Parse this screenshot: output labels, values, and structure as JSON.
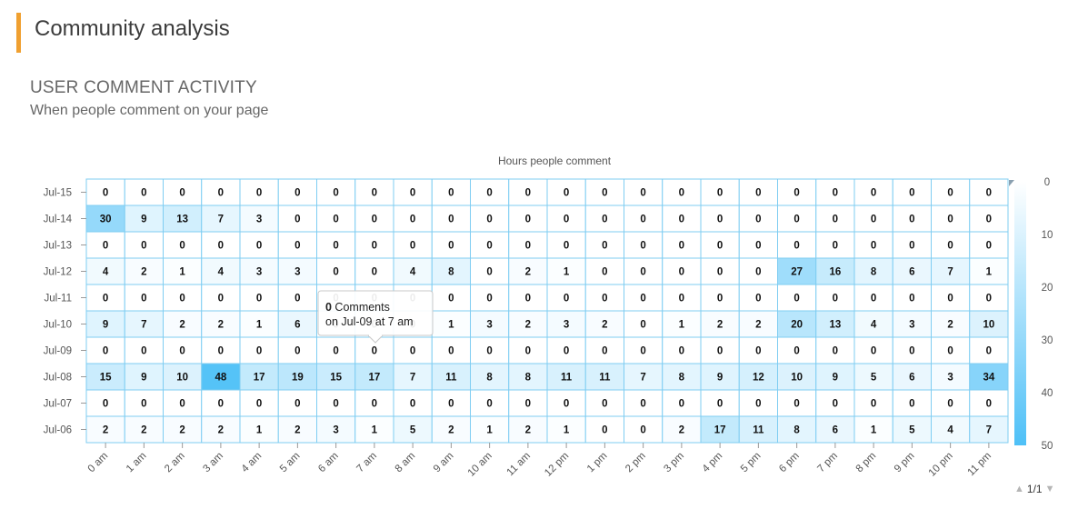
{
  "header": {
    "title": "Community analysis"
  },
  "section": {
    "title": "USER COMMENT ACTIVITY",
    "subtitle": "When people comment on your page"
  },
  "tooltip": {
    "count": "0",
    "text": " Comments",
    "line2": "on Jul-09 at 7 am"
  },
  "pager": {
    "label": "1/1",
    "up_icon": "triangle-up-icon",
    "down_icon": "triangle-down-icon"
  },
  "colors": {
    "low": "#ffffff",
    "high": "#4ec0f7",
    "grid": "#7fcdf2",
    "text": "#111111"
  },
  "chart_data": {
    "type": "heatmap",
    "title": "Hours people comment",
    "x": [
      "0 am",
      "1 am",
      "2 am",
      "3 am",
      "4 am",
      "5 am",
      "6 am",
      "7 am",
      "8 am",
      "9 am",
      "10 am",
      "11 am",
      "12 pm",
      "1 pm",
      "2 pm",
      "3 pm",
      "4 pm",
      "5 pm",
      "6 pm",
      "7 pm",
      "8 pm",
      "9 pm",
      "10 pm",
      "11 pm"
    ],
    "y": [
      "Jul-15",
      "Jul-14",
      "Jul-13",
      "Jul-12",
      "Jul-11",
      "Jul-10",
      "Jul-09",
      "Jul-08",
      "Jul-07",
      "Jul-06"
    ],
    "values": [
      [
        0,
        0,
        0,
        0,
        0,
        0,
        0,
        0,
        0,
        0,
        0,
        0,
        0,
        0,
        0,
        0,
        0,
        0,
        0,
        0,
        0,
        0,
        0,
        0
      ],
      [
        30,
        9,
        13,
        7,
        3,
        0,
        0,
        0,
        0,
        0,
        0,
        0,
        0,
        0,
        0,
        0,
        0,
        0,
        0,
        0,
        0,
        0,
        0,
        0
      ],
      [
        0,
        0,
        0,
        0,
        0,
        0,
        0,
        0,
        0,
        0,
        0,
        0,
        0,
        0,
        0,
        0,
        0,
        0,
        0,
        0,
        0,
        0,
        0,
        0
      ],
      [
        4,
        2,
        1,
        4,
        3,
        3,
        0,
        0,
        4,
        8,
        0,
        2,
        1,
        0,
        0,
        0,
        0,
        0,
        27,
        16,
        8,
        6,
        7,
        1
      ],
      [
        0,
        0,
        0,
        0,
        0,
        0,
        0,
        0,
        0,
        0,
        0,
        0,
        0,
        0,
        0,
        0,
        0,
        0,
        0,
        0,
        0,
        0,
        0,
        0
      ],
      [
        9,
        7,
        2,
        2,
        1,
        6,
        0,
        0,
        0,
        1,
        3,
        2,
        3,
        2,
        0,
        1,
        2,
        2,
        20,
        13,
        4,
        3,
        2,
        10
      ],
      [
        0,
        0,
        0,
        0,
        0,
        0,
        0,
        0,
        0,
        0,
        0,
        0,
        0,
        0,
        0,
        0,
        0,
        0,
        0,
        0,
        0,
        0,
        0,
        0
      ],
      [
        15,
        9,
        10,
        48,
        17,
        19,
        15,
        17,
        7,
        11,
        8,
        8,
        11,
        11,
        7,
        8,
        9,
        12,
        10,
        9,
        5,
        6,
        3,
        34
      ],
      [
        0,
        0,
        0,
        0,
        0,
        0,
        0,
        0,
        0,
        0,
        0,
        0,
        0,
        0,
        0,
        0,
        0,
        0,
        0,
        0,
        0,
        0,
        0,
        0
      ],
      [
        2,
        2,
        2,
        2,
        1,
        2,
        3,
        1,
        5,
        2,
        1,
        2,
        1,
        0,
        0,
        2,
        17,
        11,
        8,
        6,
        1,
        5,
        4,
        7
      ]
    ],
    "color_scale": {
      "min": 0,
      "max": 50,
      "ticks": [
        "0",
        "10",
        "20",
        "30",
        "40",
        "50"
      ]
    },
    "legend": "right"
  }
}
